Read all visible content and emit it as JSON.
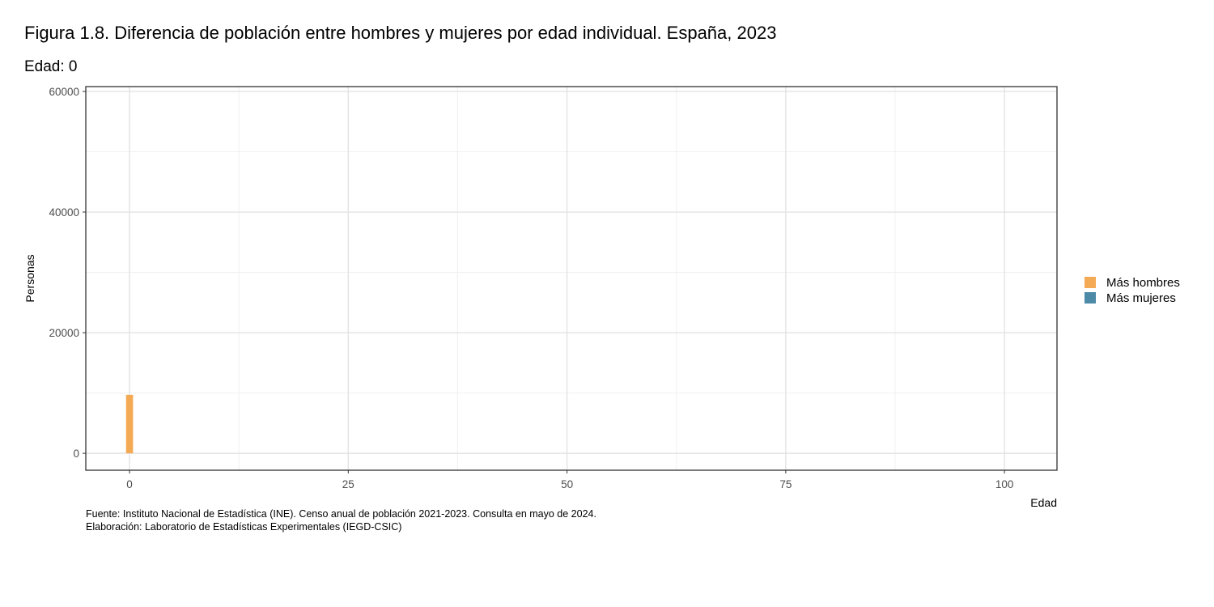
{
  "chart_data": {
    "type": "bar",
    "title": "Figura 1.8. Diferencia de población entre hombres y mujeres por edad individual. España, 2023",
    "subtitle": "Edad: 0",
    "xlabel": "Edad",
    "ylabel": "Personas",
    "xlim": [
      -5,
      106
    ],
    "ylim": [
      -2800,
      60800
    ],
    "x_ticks": [
      0,
      25,
      50,
      75,
      100
    ],
    "x_tick_labels": [
      "0",
      "25",
      "50",
      "75",
      "100"
    ],
    "x_minor_ticks": [
      12.5,
      37.5,
      62.5,
      87.5
    ],
    "y_ticks": [
      0,
      20000,
      40000,
      60000
    ],
    "y_tick_labels": [
      "0",
      "20000",
      "40000",
      "60000"
    ],
    "y_minor_ticks": [
      10000,
      30000,
      50000
    ],
    "grid": true,
    "legend_position": "right",
    "legend": [
      {
        "label": "Más hombres",
        "color": "#f4aa54"
      },
      {
        "label": "Más mujeres",
        "color": "#4d8aa8"
      }
    ],
    "bars": [
      {
        "x": 0,
        "value": 9700,
        "group": "Más hombres"
      }
    ],
    "caption": [
      "Fuente: Instituto Nacional de Estadística (INE). Censo anual de población 2021-2023. Consulta en mayo de 2024.",
      "Elaboración: Laboratorio de Estadísticas Experimentales (IEGD-CSIC)"
    ]
  }
}
